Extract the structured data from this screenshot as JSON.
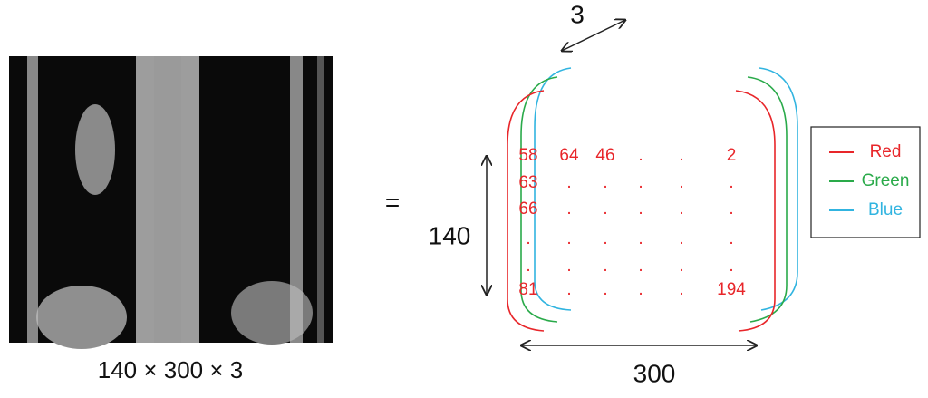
{
  "image": {
    "caption": "140 × 300 × 3"
  },
  "equals": "=",
  "depth_label": "3",
  "height_label": "140",
  "width_label": "300",
  "matrix": {
    "rows": [
      [
        "58",
        "64",
        "46",
        ".",
        ".",
        "2"
      ],
      [
        "63",
        ".",
        ".",
        ".",
        ".",
        "."
      ],
      [
        "66",
        ".",
        ".",
        ".",
        ".",
        "."
      ],
      [
        ".",
        ".",
        ".",
        ".",
        ".",
        "."
      ],
      [
        ".",
        ".",
        ".",
        ".",
        ".",
        "."
      ],
      [
        "81",
        ".",
        ".",
        ".",
        ".",
        "194"
      ]
    ]
  },
  "legend": {
    "items": [
      {
        "label": "Red",
        "color": "#e8262a"
      },
      {
        "label": "Green",
        "color": "#2aaa4a"
      },
      {
        "label": "Blue",
        "color": "#31b4e0"
      }
    ]
  }
}
